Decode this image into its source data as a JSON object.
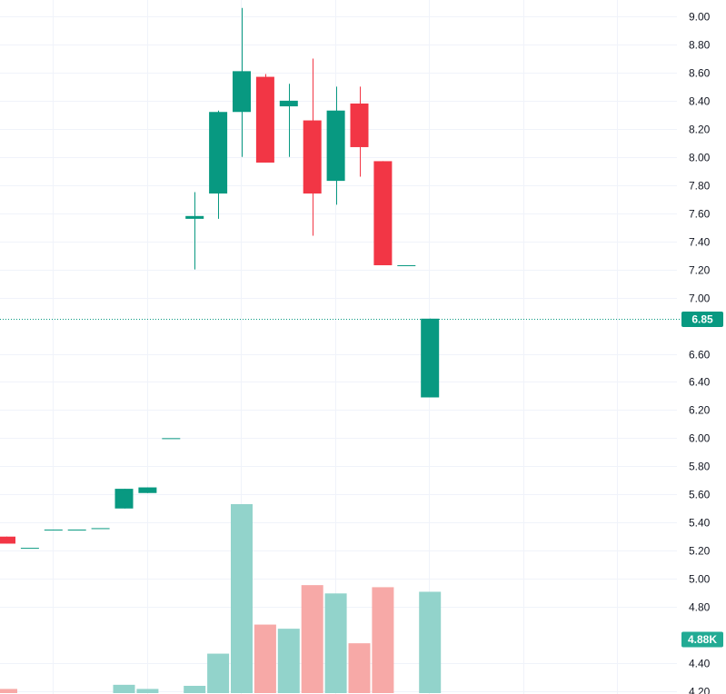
{
  "chart_data": {
    "type": "candlestick",
    "colors": {
      "up": "#089981",
      "down": "#f23645",
      "volume_up": "#92d3cb",
      "volume_down": "#f7a9a7",
      "grid": "#f0f3fa",
      "price_line": "#089981"
    },
    "y_axis": {
      "ticks": [
        "9.00",
        "8.80",
        "8.60",
        "8.40",
        "8.20",
        "8.00",
        "7.80",
        "7.60",
        "7.40",
        "7.20",
        "7.00",
        "6.60",
        "6.40",
        "6.20",
        "6.00",
        "5.80",
        "5.60",
        "5.40",
        "5.20",
        "5.00",
        "4.80",
        "4.40",
        "4.20"
      ],
      "range": [
        4.18,
        9.1
      ]
    },
    "last_price": {
      "value": 6.85,
      "label": "6.85"
    },
    "last_volume": {
      "label": "4.88K"
    },
    "candles": [
      {
        "open": 5.3,
        "high": 5.3,
        "low": 5.25,
        "close": 5.25,
        "volume": 0.2
      },
      {
        "open": 5.22,
        "high": 5.22,
        "low": 5.22,
        "close": 5.22,
        "volume": 0.0
      },
      {
        "open": 5.35,
        "high": 5.35,
        "low": 5.35,
        "close": 5.35,
        "volume": 0.0
      },
      {
        "open": 5.35,
        "high": 5.35,
        "low": 5.35,
        "close": 5.35,
        "volume": 0.0
      },
      {
        "open": 5.36,
        "high": 5.36,
        "low": 5.36,
        "close": 5.36,
        "volume": 0.0
      },
      {
        "open": 5.5,
        "high": 5.64,
        "low": 5.5,
        "close": 5.64,
        "volume": 0.4
      },
      {
        "open": 5.61,
        "high": 5.65,
        "low": 5.61,
        "close": 5.65,
        "volume": 0.2
      },
      {
        "open": 6.0,
        "high": 6.0,
        "low": 6.0,
        "close": 6.0,
        "volume": 0.0
      },
      {
        "open": 7.56,
        "high": 7.75,
        "low": 7.2,
        "close": 7.58,
        "volume": 0.35
      },
      {
        "open": 7.74,
        "high": 8.33,
        "low": 7.56,
        "close": 8.32,
        "volume": 1.9
      },
      {
        "open": 8.32,
        "high": 9.06,
        "low": 8.0,
        "close": 8.61,
        "volume": 9.1
      },
      {
        "open": 8.57,
        "high": 8.59,
        "low": 7.96,
        "close": 7.96,
        "volume": 3.3
      },
      {
        "open": 8.36,
        "high": 8.52,
        "low": 8.0,
        "close": 8.4,
        "volume": 3.1
      },
      {
        "open": 8.26,
        "high": 8.7,
        "low": 7.44,
        "close": 7.74,
        "volume": 5.2
      },
      {
        "open": 7.83,
        "high": 8.5,
        "low": 7.66,
        "close": 8.33,
        "volume": 4.8
      },
      {
        "open": 8.38,
        "high": 8.5,
        "low": 7.86,
        "close": 8.07,
        "volume": 2.4
      },
      {
        "open": 7.97,
        "high": 7.97,
        "low": 7.23,
        "close": 7.23,
        "volume": 5.1
      },
      {
        "open": 7.23,
        "high": 7.23,
        "low": 7.23,
        "close": 7.23,
        "volume": 0.0
      },
      {
        "open": 6.29,
        "high": 6.85,
        "low": 6.29,
        "close": 6.85,
        "volume": 4.88
      }
    ]
  }
}
